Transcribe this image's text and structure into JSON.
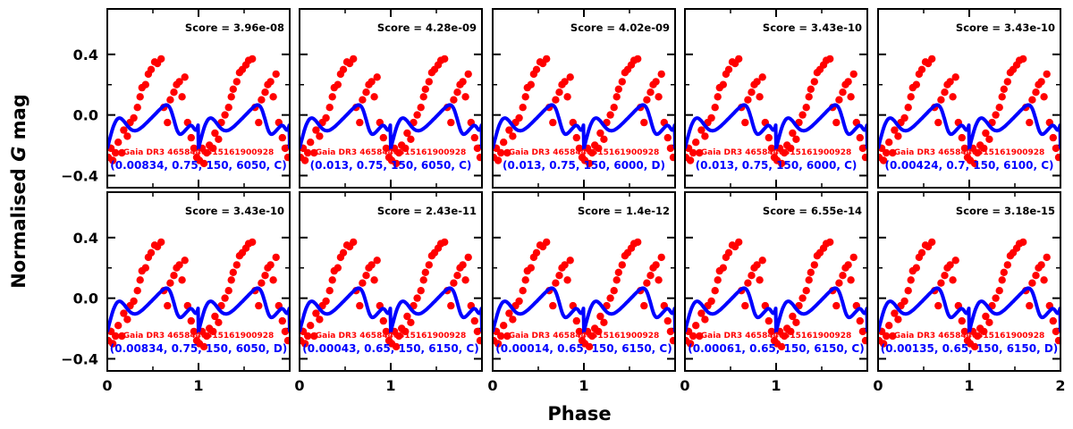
{
  "figure": {
    "ylabel_prefix": "Normalised ",
    "ylabel_var": "G",
    "ylabel_suffix": " mag",
    "xlabel": "Phase",
    "star_label": "Gaia DR3 4658440315161900928",
    "x_tick_labels": [
      "0",
      "1",
      "2"
    ],
    "y_tick_labels": [
      "−0.4",
      "0.0",
      "0.4"
    ],
    "colors": {
      "observed": "#ff0000",
      "model": "#0000ff",
      "score": "#000000"
    }
  },
  "chart_data": [
    {
      "type": "scatter",
      "panel": 1,
      "score": "Score = 3.96e-08",
      "params": "(0.00834, 0.75, 150, 6050, C)",
      "x_range": [
        0,
        2
      ],
      "y_range": [
        0.7,
        -0.48
      ],
      "inverted_y": true
    },
    {
      "type": "scatter",
      "panel": 2,
      "score": "Score = 4.28e-09",
      "params": "(0.013, 0.75, 150, 6050, C)",
      "x_range": [
        0,
        2
      ],
      "y_range": [
        0.7,
        -0.48
      ],
      "inverted_y": true
    },
    {
      "type": "scatter",
      "panel": 3,
      "score": "Score = 4.02e-09",
      "params": "(0.013, 0.75, 150, 6000, D)",
      "x_range": [
        0,
        2
      ],
      "y_range": [
        0.7,
        -0.48
      ],
      "inverted_y": true
    },
    {
      "type": "scatter",
      "panel": 4,
      "score": "Score = 3.43e-10",
      "params": "(0.013, 0.75, 150, 6000, C)",
      "x_range": [
        0,
        2
      ],
      "y_range": [
        0.7,
        -0.48
      ],
      "inverted_y": true
    },
    {
      "type": "scatter",
      "panel": 5,
      "score": "Score = 3.43e-10",
      "params": "(0.00424, 0.7, 150, 6100, C)",
      "x_range": [
        0,
        2
      ],
      "y_range": [
        0.7,
        -0.48
      ],
      "inverted_y": true
    },
    {
      "type": "scatter",
      "panel": 6,
      "score": "Score = 3.43e-10",
      "params": "(0.00834, 0.75, 150, 6050, D)",
      "x_range": [
        0,
        2
      ],
      "y_range": [
        0.7,
        -0.48
      ],
      "inverted_y": true
    },
    {
      "type": "scatter",
      "panel": 7,
      "score": "Score = 2.43e-11",
      "params": "(0.00043, 0.65, 150, 6150, C)",
      "x_range": [
        0,
        2
      ],
      "y_range": [
        0.7,
        -0.48
      ],
      "inverted_y": true
    },
    {
      "type": "scatter",
      "panel": 8,
      "score": "Score = 1.4e-12",
      "params": "(0.00014, 0.65, 150, 6150, C)",
      "x_range": [
        0,
        2
      ],
      "y_range": [
        0.7,
        -0.48
      ],
      "inverted_y": true
    },
    {
      "type": "scatter",
      "panel": 9,
      "score": "Score = 6.55e-14",
      "params": "(0.00061, 0.65, 150, 6150, C)",
      "x_range": [
        0,
        2
      ],
      "y_range": [
        0.7,
        -0.48
      ],
      "inverted_y": true
    },
    {
      "type": "scatter",
      "panel": 10,
      "score": "Score = 3.18e-15",
      "params": "(0.00135, 0.65, 150, 6150, D)",
      "x_range": [
        0,
        2
      ],
      "y_range": [
        0.7,
        -0.48
      ],
      "inverted_y": true
    }
  ],
  "observed": {
    "x": [
      0.01,
      0.04,
      0.06,
      0.09,
      0.12,
      0.16,
      0.18,
      0.22,
      0.25,
      0.29,
      0.33,
      0.36,
      0.38,
      0.42,
      0.45,
      0.48,
      0.52,
      0.55,
      0.59,
      0.62,
      0.66,
      0.69,
      0.73,
      0.76,
      0.79,
      0.82,
      0.85,
      0.88,
      0.92,
      0.95,
      0.98,
      1.01,
      1.04,
      1.06,
      1.09,
      1.12,
      1.16,
      1.18,
      1.22,
      1.25,
      1.29,
      1.33,
      1.36,
      1.38,
      1.42,
      1.45,
      1.48,
      1.52,
      1.55,
      1.59,
      1.62,
      1.66,
      1.69,
      1.73,
      1.76,
      1.79,
      1.82,
      1.85,
      1.88,
      1.92,
      1.95,
      1.98
    ],
    "y": [
      -0.28,
      -0.22,
      -0.3,
      -0.25,
      -0.18,
      -0.25,
      -0.1,
      -0.14,
      -0.05,
      -0.02,
      0.05,
      0.12,
      0.18,
      0.2,
      0.27,
      0.3,
      0.35,
      0.34,
      0.37,
      0.05,
      -0.05,
      0.1,
      0.15,
      0.2,
      0.22,
      0.12,
      0.25,
      -0.05,
      -0.15,
      -0.22,
      -0.28,
      -0.3,
      -0.22,
      -0.32,
      -0.25,
      -0.2,
      -0.22,
      -0.12,
      -0.16,
      -0.05,
      0.0,
      0.05,
      0.12,
      0.17,
      0.22,
      0.28,
      0.3,
      0.33,
      0.36,
      0.37,
      0.05,
      -0.05,
      0.1,
      0.15,
      0.2,
      0.22,
      0.12,
      0.27,
      -0.05,
      -0.15,
      -0.22,
      -0.28
    ]
  }
}
